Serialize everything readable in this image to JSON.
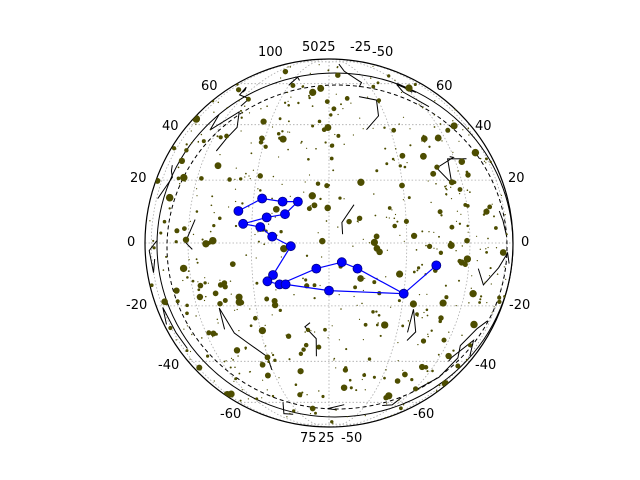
{
  "chart_data": {
    "type": "scatter",
    "title": "",
    "xlabel": "",
    "ylabel": "",
    "projection": "orthographic sky globe",
    "grid": true,
    "legend": "none",
    "colors": {
      "stars": "#4d4d00",
      "constellation_lines": "#000000",
      "highlight": "#0000ff",
      "grid": "#aaaaaa"
    },
    "tick_labels": {
      "top": [
        "100",
        "50",
        "25",
        "-25",
        "-50"
      ],
      "left": [
        "60",
        "40",
        "20",
        "0",
        "-20",
        "-40",
        "-60"
      ],
      "right": [
        "60",
        "40",
        "20",
        "0",
        "-20",
        "-40",
        "-60"
      ],
      "bottom": [
        "75",
        "25",
        "-50"
      ]
    },
    "highlighted_constellation": {
      "points": [
        [
          -30,
          10
        ],
        [
          -22,
          14
        ],
        [
          -15,
          13
        ],
        [
          -10,
          13
        ],
        [
          -14,
          9
        ],
        [
          -20,
          8
        ],
        [
          -28,
          6
        ],
        [
          -22,
          5
        ],
        [
          -18,
          2
        ],
        [
          -12,
          -1
        ],
        [
          -18,
          -10
        ],
        [
          -20,
          -12
        ],
        [
          -16,
          -13
        ],
        [
          -4,
          -8
        ],
        [
          4,
          -6
        ],
        [
          9,
          -8
        ],
        [
          25,
          -16
        ],
        [
          36,
          -7
        ],
        [
          0,
          -15
        ],
        [
          -14,
          -13
        ]
      ],
      "path": [
        0,
        1,
        2,
        3,
        4,
        5,
        6,
        7,
        8,
        9,
        10,
        11,
        12,
        13,
        14,
        15,
        16,
        17
      ],
      "path2": [
        16,
        18,
        19
      ]
    }
  }
}
